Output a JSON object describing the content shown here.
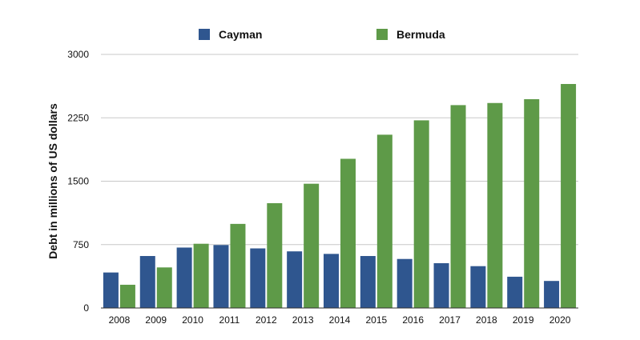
{
  "chart_data": {
    "type": "bar",
    "title": "",
    "xlabel": "",
    "ylabel": "Debt in millions of US dollars",
    "categories": [
      "2008",
      "2009",
      "2010",
      "2011",
      "2012",
      "2013",
      "2014",
      "2015",
      "2016",
      "2017",
      "2018",
      "2019",
      "2020"
    ],
    "series": [
      {
        "name": "Cayman",
        "color": "#2f568f",
        "values": [
          420,
          615,
          715,
          745,
          705,
          670,
          640,
          615,
          580,
          530,
          495,
          370,
          320
        ]
      },
      {
        "name": "Bermuda",
        "color": "#5e9a48",
        "values": [
          275,
          480,
          760,
          995,
          1240,
          1470,
          1765,
          2050,
          2220,
          2400,
          2425,
          2470,
          2650
        ]
      }
    ],
    "ylim": [
      0,
      3000
    ],
    "yticks": [
      0,
      750,
      1500,
      2250,
      3000
    ],
    "grid": true,
    "legend_position": "top-center"
  }
}
